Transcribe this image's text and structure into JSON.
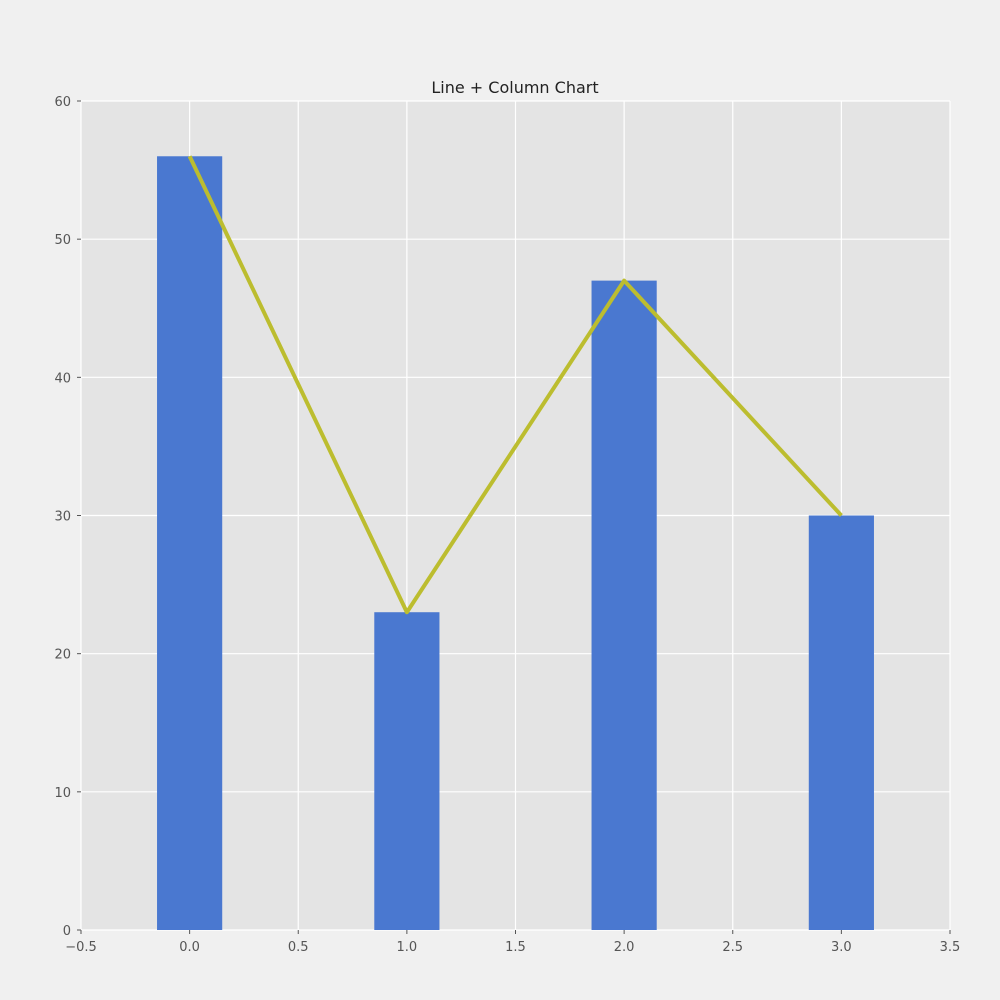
{
  "chart_data": {
    "type": "bar",
    "title": "Line + Column Chart",
    "xlabel": "",
    "ylabel": "",
    "xlim": [
      -0.5,
      3.5
    ],
    "ylim": [
      0,
      60
    ],
    "x_ticks": [
      "−0.5",
      "0.0",
      "0.5",
      "1.0",
      "1.5",
      "2.0",
      "2.5",
      "3.0",
      "3.5"
    ],
    "x_tick_values": [
      -0.5,
      0.0,
      0.5,
      1.0,
      1.5,
      2.0,
      2.5,
      3.0,
      3.5
    ],
    "y_ticks": [
      "0",
      "10",
      "20",
      "30",
      "40",
      "50",
      "60"
    ],
    "y_tick_values": [
      0,
      10,
      20,
      30,
      40,
      50,
      60
    ],
    "grid": true,
    "bar_width": 0.3,
    "series": [
      {
        "type": "bar",
        "x": [
          0,
          1,
          2,
          3
        ],
        "values": [
          56,
          23,
          47,
          30
        ],
        "color": "#4a78d0"
      },
      {
        "type": "line",
        "x": [
          0,
          1,
          2,
          3
        ],
        "values": [
          56,
          23,
          47,
          30
        ],
        "color": "#bcbd2f"
      }
    ],
    "colors": {
      "figure_bg": "#f0f0f0",
      "plot_bg": "#e4e4e4",
      "grid": "#ffffff"
    }
  }
}
